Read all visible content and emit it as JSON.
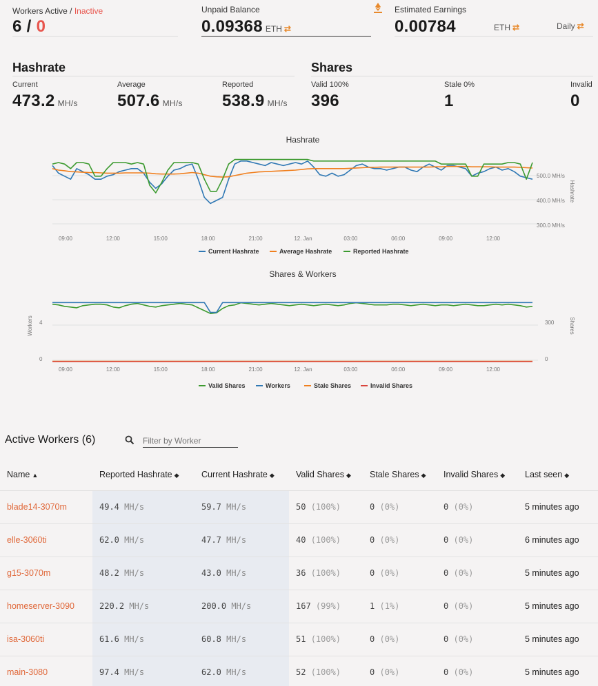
{
  "workers": {
    "label_active": "Workers Active",
    "sep": " / ",
    "label_inactive": "Inactive",
    "active": "6",
    "slash": " / ",
    "inactive": "0"
  },
  "balance": {
    "label": "Unpaid Balance",
    "value": "0.09368",
    "currency": "ETH",
    "swap_icon": "swap-arrows-icon"
  },
  "earnings": {
    "label": "Estimated Earnings",
    "value": "0.00784",
    "currency": "ETH",
    "period": "Daily",
    "hand_icon": "eth-hand-icon"
  },
  "hashrate": {
    "title": "Hashrate",
    "current_label": "Current",
    "current_value": "473.2",
    "current_unit": "MH/s",
    "average_label": "Average",
    "average_value": "507.6",
    "average_unit": "MH/s",
    "reported_label": "Reported",
    "reported_value": "538.9",
    "reported_unit": "MH/s"
  },
  "shares": {
    "title": "Shares",
    "valid_label": "Valid 100%",
    "valid_value": "396",
    "stale_label": "Stale 0%",
    "stale_value": "1",
    "invalid_label": "Invalid",
    "invalid_value": "0"
  },
  "chart_data": [
    {
      "type": "line",
      "title": "Hashrate",
      "ylabel": "Hashrate",
      "x_ticks": [
        "09:00",
        "12:00",
        "15:00",
        "18:00",
        "21:00",
        "12. Jan",
        "03:00",
        "06:00",
        "09:00",
        "12:00"
      ],
      "y_ticks": [
        "500.0 MH/s",
        "400.0 MH/s",
        "300.0 MH/s"
      ],
      "ylim": [
        300,
        550
      ],
      "legend_position": "bottom",
      "series": [
        {
          "name": "Current Hashrate",
          "color": "#2f78b4",
          "values": [
            515,
            490,
            480,
            470,
            505,
            495,
            485,
            470,
            470,
            480,
            485,
            495,
            500,
            505,
            505,
            490,
            460,
            440,
            455,
            480,
            500,
            505,
            515,
            520,
            470,
            410,
            390,
            400,
            410,
            470,
            520,
            530,
            530,
            525,
            520,
            515,
            525,
            520,
            515,
            520,
            525,
            520,
            530,
            510,
            485,
            480,
            490,
            480,
            485,
            500,
            515,
            520,
            510,
            505,
            505,
            500,
            505,
            510,
            510,
            500,
            495,
            510,
            520,
            510,
            500,
            515,
            515,
            510,
            505,
            480,
            490,
            495,
            505,
            510,
            500,
            505,
            495,
            480,
            475,
            470
          ]
        },
        {
          "name": "Average Hashrate",
          "color": "#f07f1e",
          "values": [
            505,
            500,
            498,
            495,
            494,
            493,
            492,
            492,
            491,
            490,
            490,
            490,
            491,
            491,
            491,
            491,
            490,
            488,
            487,
            487,
            487,
            488,
            490,
            492,
            490,
            485,
            480,
            478,
            477,
            478,
            482,
            486,
            490,
            492,
            494,
            495,
            496,
            497,
            498,
            499,
            500,
            502,
            504,
            505,
            505,
            505,
            505,
            505,
            505,
            506,
            507,
            508,
            509,
            509,
            510,
            510,
            510,
            510,
            510,
            510,
            510,
            510,
            510,
            511,
            511,
            512,
            512,
            512,
            512,
            511,
            511,
            511,
            511,
            510,
            510,
            510,
            510,
            509,
            508,
            507
          ]
        },
        {
          "name": "Reported Hashrate",
          "color": "#3c9a2f",
          "values": [
            520,
            525,
            520,
            505,
            525,
            525,
            520,
            480,
            480,
            505,
            525,
            525,
            525,
            520,
            525,
            520,
            450,
            425,
            460,
            500,
            525,
            525,
            525,
            525,
            520,
            470,
            430,
            430,
            470,
            520,
            535,
            535,
            535,
            535,
            535,
            535,
            535,
            535,
            535,
            535,
            535,
            535,
            535,
            530,
            530,
            530,
            530,
            530,
            530,
            530,
            530,
            530,
            530,
            530,
            530,
            530,
            530,
            530,
            530,
            530,
            530,
            530,
            530,
            530,
            520,
            520,
            520,
            520,
            520,
            480,
            480,
            520,
            520,
            520,
            520,
            525,
            525,
            520,
            470,
            525
          ]
        }
      ]
    },
    {
      "type": "line",
      "title": "Shares & Workers",
      "ylabel": "Workers",
      "ylabel_right": "Shares",
      "x_ticks": [
        "09:00",
        "12:00",
        "15:00",
        "18:00",
        "21:00",
        "12. Jan",
        "03:00",
        "06:00",
        "09:00",
        "12:00"
      ],
      "y_ticks_left": [
        "4",
        "0"
      ],
      "y_ticks_right": [
        "300",
        "0"
      ],
      "ylim_left": [
        0,
        7
      ],
      "ylim_right": [
        0,
        480
      ],
      "legend_position": "bottom",
      "series": [
        {
          "name": "Valid Shares",
          "color": "#3c9a2f",
          "axis": "right",
          "values": [
            400,
            395,
            385,
            380,
            375,
            390,
            395,
            400,
            400,
            395,
            380,
            375,
            390,
            400,
            405,
            395,
            385,
            380,
            390,
            395,
            400,
            405,
            400,
            395,
            375,
            355,
            335,
            340,
            370,
            390,
            395,
            410,
            405,
            400,
            395,
            400,
            405,
            400,
            395,
            390,
            395,
            400,
            395,
            390,
            395,
            400,
            395,
            390,
            395,
            405,
            410,
            405,
            400,
            395,
            395,
            395,
            400,
            400,
            395,
            390,
            395,
            400,
            395,
            390,
            395,
            395,
            390,
            395,
            400,
            395,
            390,
            390,
            395,
            400,
            395,
            400,
            395,
            390,
            380,
            385
          ]
        },
        {
          "name": "Workers",
          "color": "#2f78b4",
          "axis": "left",
          "values": [
            6,
            6,
            6,
            6,
            6,
            6,
            6,
            6,
            6,
            6,
            6,
            6,
            6,
            6,
            6,
            6,
            6,
            6,
            6,
            6,
            6,
            6,
            6,
            6,
            6,
            6,
            5,
            5,
            6,
            6,
            6,
            6,
            6,
            6,
            6,
            6,
            6,
            6,
            6,
            6,
            6,
            6,
            6,
            6,
            6,
            6,
            6,
            6,
            6,
            6,
            6,
            6,
            6,
            6,
            6,
            6,
            6,
            6,
            6,
            6,
            6,
            6,
            6,
            6,
            6,
            6,
            6,
            6,
            6,
            6,
            6,
            6,
            6,
            6,
            6,
            6,
            6,
            6,
            6,
            6
          ]
        },
        {
          "name": "Stale Shares",
          "color": "#f07f1e",
          "axis": "right",
          "values": [
            2,
            2,
            2,
            2,
            2,
            2,
            2,
            2,
            2,
            2,
            2,
            2,
            2,
            2,
            2,
            2,
            2,
            2,
            2,
            2,
            2,
            2,
            2,
            2,
            2,
            2,
            2,
            2,
            2,
            2,
            2,
            2,
            2,
            2,
            2,
            2,
            2,
            2,
            2,
            2,
            2,
            2,
            2,
            2,
            2,
            2,
            2,
            2,
            2,
            2,
            2,
            2,
            2,
            2,
            2,
            2,
            2,
            2,
            2,
            2,
            2,
            2,
            2,
            2,
            2,
            2,
            2,
            2,
            2,
            2,
            2,
            2,
            2,
            2,
            2,
            2,
            2,
            2,
            2,
            2
          ]
        },
        {
          "name": "Invalid Shares",
          "color": "#d9433b",
          "axis": "right",
          "values": [
            0,
            0,
            0,
            0,
            0,
            0,
            0,
            0,
            0,
            0,
            0,
            0,
            0,
            0,
            0,
            0,
            0,
            0,
            0,
            0,
            0,
            0,
            0,
            0,
            0,
            0,
            0,
            0,
            0,
            0,
            0,
            0,
            0,
            0,
            0,
            0,
            0,
            0,
            0,
            0,
            0,
            0,
            0,
            0,
            0,
            0,
            0,
            0,
            0,
            0,
            0,
            0,
            0,
            0,
            0,
            0,
            0,
            0,
            0,
            0,
            0,
            0,
            0,
            0,
            0,
            0,
            0,
            0,
            0,
            0,
            0,
            0,
            0,
            0,
            0,
            0,
            0,
            0,
            0,
            0
          ]
        }
      ]
    }
  ],
  "table": {
    "title": "Active Workers",
    "count": "(6)",
    "filter_placeholder": "Filter by Worker",
    "search_icon": "search-icon",
    "headers": [
      "Name",
      "Reported Hashrate",
      "Current Hashrate",
      "Valid Shares",
      "Stale Shares",
      "Invalid Shares",
      "Last seen"
    ],
    "rows": [
      {
        "name": "blade14-3070m",
        "reported": "49.4",
        "current": "59.7",
        "valid": "50",
        "valid_pct": "(100%)",
        "stale": "0",
        "stale_pct": "(0%)",
        "invalid": "0",
        "invalid_pct": "(0%)",
        "seen": "5 minutes ago"
      },
      {
        "name": "elle-3060ti",
        "reported": "62.0",
        "current": "47.7",
        "valid": "40",
        "valid_pct": "(100%)",
        "stale": "0",
        "stale_pct": "(0%)",
        "invalid": "0",
        "invalid_pct": "(0%)",
        "seen": "6 minutes ago"
      },
      {
        "name": "g15-3070m",
        "reported": "48.2",
        "current": "43.0",
        "valid": "36",
        "valid_pct": "(100%)",
        "stale": "0",
        "stale_pct": "(0%)",
        "invalid": "0",
        "invalid_pct": "(0%)",
        "seen": "5 minutes ago"
      },
      {
        "name": "homeserver-3090",
        "reported": "220.2",
        "current": "200.0",
        "valid": "167",
        "valid_pct": "(99%)",
        "stale": "1",
        "stale_pct": "(1%)",
        "invalid": "0",
        "invalid_pct": "(0%)",
        "seen": "5 minutes ago"
      },
      {
        "name": "isa-3060ti",
        "reported": "61.6",
        "current": "60.8",
        "valid": "51",
        "valid_pct": "(100%)",
        "stale": "0",
        "stale_pct": "(0%)",
        "invalid": "0",
        "invalid_pct": "(0%)",
        "seen": "5 minutes ago"
      },
      {
        "name": "main-3080",
        "reported": "97.4",
        "current": "62.0",
        "valid": "52",
        "valid_pct": "(100%)",
        "stale": "0",
        "stale_pct": "(0%)",
        "invalid": "0",
        "invalid_pct": "(0%)",
        "seen": "5 minutes ago"
      }
    ],
    "unit": "MH/s"
  }
}
